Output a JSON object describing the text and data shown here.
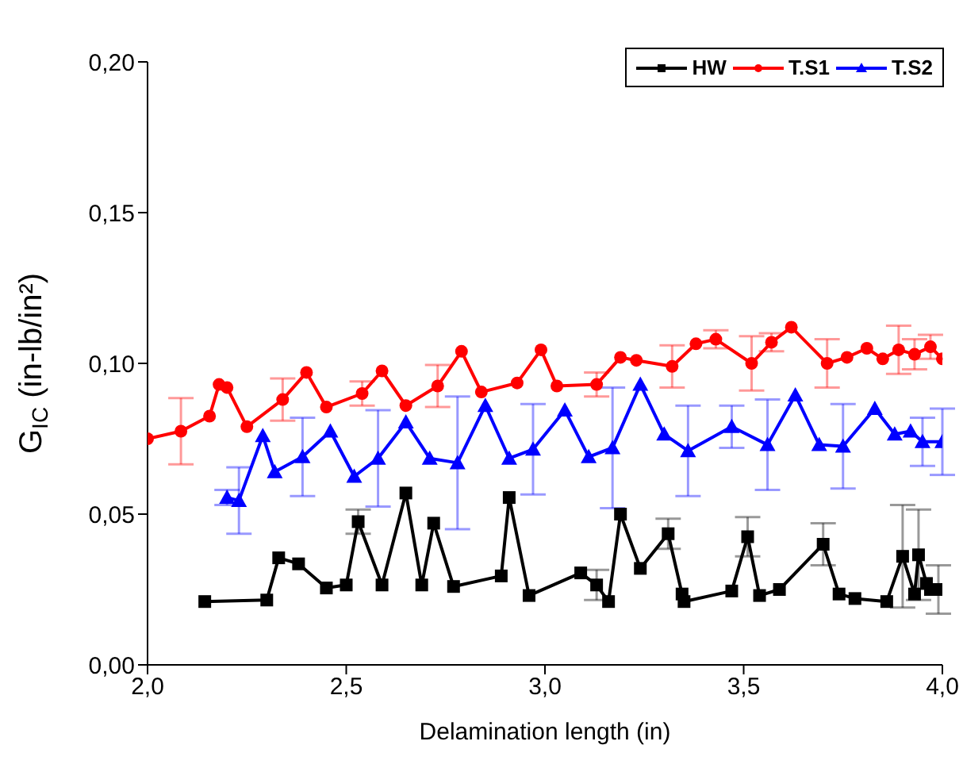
{
  "chart_data": {
    "type": "line",
    "xlabel": "Delamination length (in)",
    "ylabel": "G$_{IC}$ (in-lb/in²)",
    "xlim": [
      2.0,
      4.0
    ],
    "xticks": [
      {
        "value": 2.0,
        "label": "2,0"
      },
      {
        "value": 2.5,
        "label": "2,5"
      },
      {
        "value": 3.0,
        "label": "3,0"
      },
      {
        "value": 3.5,
        "label": "3,5"
      },
      {
        "value": 4.0,
        "label": "4,0"
      }
    ],
    "ylim": [
      0,
      0.2
    ],
    "yticks": [
      {
        "value": 0,
        "label": "0,00"
      },
      {
        "value": 0.05,
        "label": "0,05"
      },
      {
        "value": 0.1,
        "label": "0,10"
      },
      {
        "value": 0.15,
        "label": "0,15"
      },
      {
        "value": 0.2,
        "label": "0,20"
      }
    ],
    "legend": "top right",
    "line_style": "solid",
    "series": [
      {
        "name": "HW",
        "color": "#000000",
        "marker": "square",
        "x": [
          2.144,
          2.3,
          2.33,
          2.38,
          2.45,
          2.5,
          2.53,
          2.59,
          2.65,
          2.69,
          2.72,
          2.77,
          2.89,
          2.91,
          2.96,
          3.09,
          3.13,
          3.16,
          3.19,
          3.24,
          3.31,
          3.345,
          3.35,
          3.47,
          3.51,
          3.54,
          3.59,
          3.7,
          3.74,
          3.78,
          3.86,
          3.9,
          3.93,
          3.94,
          3.96,
          3.97,
          3.99
        ],
        "values": [
          0.021,
          0.0215,
          0.0355,
          0.0335,
          0.0255,
          0.0265,
          0.0475,
          0.0265,
          0.057,
          0.0265,
          0.047,
          0.026,
          0.0295,
          0.0555,
          0.023,
          0.0305,
          0.0265,
          0.021,
          0.05,
          0.032,
          0.0435,
          0.0235,
          0.021,
          0.0245,
          0.0425,
          0.023,
          0.025,
          0.04,
          0.0235,
          0.022,
          0.021,
          0.036,
          0.0235,
          0.0365,
          0.027,
          0.025,
          0.025
        ],
        "errors": [
          null,
          null,
          null,
          null,
          null,
          null,
          0.004,
          null,
          null,
          null,
          null,
          null,
          null,
          null,
          null,
          null,
          0.005,
          null,
          null,
          null,
          0.005,
          null,
          null,
          null,
          0.0065,
          null,
          null,
          0.007,
          null,
          null,
          null,
          0.017,
          null,
          0.015,
          null,
          null,
          0.008
        ]
      },
      {
        "name": "T.S1",
        "color": "#ff0000",
        "marker": "circle",
        "x": [
          2.0,
          2.084,
          2.156,
          2.18,
          2.2,
          2.25,
          2.34,
          2.4,
          2.45,
          2.54,
          2.59,
          2.65,
          2.73,
          2.79,
          2.84,
          2.93,
          2.99,
          3.03,
          3.13,
          3.19,
          3.23,
          3.32,
          3.38,
          3.43,
          3.52,
          3.57,
          3.62,
          3.71,
          3.76,
          3.81,
          3.85,
          3.89,
          3.93,
          3.97,
          4.0
        ],
        "values": [
          0.075,
          0.0775,
          0.0825,
          0.093,
          0.092,
          0.079,
          0.088,
          0.097,
          0.0855,
          0.09,
          0.0975,
          0.086,
          0.0925,
          0.104,
          0.0905,
          0.0935,
          0.1045,
          0.0925,
          0.093,
          0.102,
          0.101,
          0.099,
          0.1065,
          0.108,
          0.1,
          0.107,
          0.112,
          0.1,
          0.102,
          0.105,
          0.1015,
          0.1045,
          0.103,
          0.1055,
          0.1015
        ],
        "errors": [
          null,
          0.011,
          null,
          null,
          null,
          null,
          0.007,
          null,
          null,
          0.004,
          null,
          null,
          0.007,
          null,
          null,
          null,
          null,
          null,
          0.004,
          null,
          null,
          0.007,
          null,
          0.003,
          0.009,
          0.003,
          null,
          0.008,
          null,
          null,
          null,
          0.008,
          0.005,
          0.004,
          null
        ]
      },
      {
        "name": "T.S2",
        "color": "#0000ff",
        "marker": "triangle",
        "x": [
          2.2,
          2.23,
          2.29,
          2.32,
          2.39,
          2.46,
          2.52,
          2.58,
          2.65,
          2.71,
          2.78,
          2.85,
          2.91,
          2.97,
          3.05,
          3.11,
          3.17,
          3.24,
          3.3,
          3.36,
          3.47,
          3.56,
          3.63,
          3.69,
          3.75,
          3.83,
          3.88,
          3.92,
          3.95,
          4.0
        ],
        "values": [
          0.0555,
          0.0545,
          0.076,
          0.064,
          0.069,
          0.0775,
          0.0625,
          0.0685,
          0.0805,
          0.0685,
          0.067,
          0.086,
          0.0685,
          0.0715,
          0.0845,
          0.069,
          0.072,
          0.093,
          0.0765,
          0.071,
          0.079,
          0.073,
          0.0895,
          0.073,
          0.0725,
          0.085,
          0.0765,
          0.0775,
          0.074,
          0.074
        ],
        "errors": [
          0.0025,
          0.011,
          null,
          null,
          0.013,
          null,
          null,
          0.016,
          null,
          null,
          0.022,
          null,
          null,
          0.015,
          null,
          null,
          0.02,
          null,
          null,
          0.015,
          0.007,
          0.015,
          null,
          null,
          0.014,
          null,
          null,
          null,
          0.008,
          0.011
        ]
      }
    ]
  }
}
